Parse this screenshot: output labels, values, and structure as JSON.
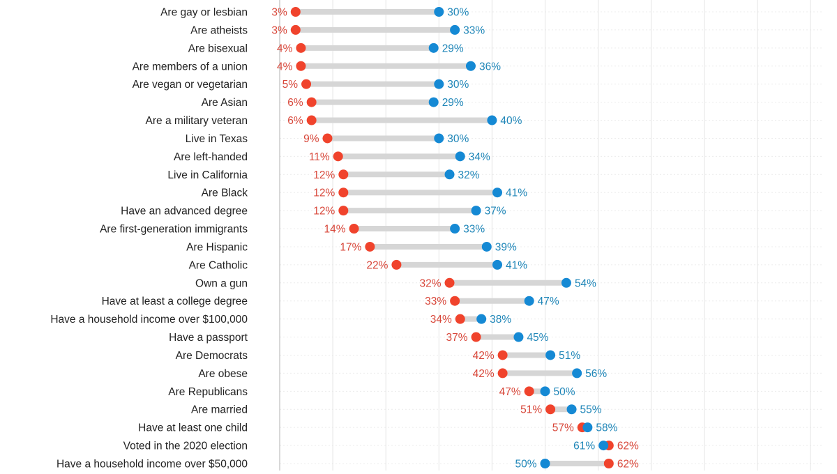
{
  "chart_data": {
    "type": "dumbbell",
    "xlim": [
      0,
      100
    ],
    "grid": true,
    "value_suffix": "%",
    "colors": {
      "red": "#f0432c",
      "blue": "#1589d4",
      "bar": "#d6d6d6",
      "red_text": "#d8473a",
      "blue_text": "#1f86b8",
      "label_text": "#222222"
    },
    "categories": [
      "Are gay or lesbian",
      "Are atheists",
      "Are bisexual",
      "Are members of a union",
      "Are vegan or vegetarian",
      "Are Asian",
      "Are a military veteran",
      "Live in Texas",
      "Are left-handed",
      "Live in California",
      "Are Black",
      "Have an advanced degree",
      "Are first-generation immigrants",
      "Are Hispanic",
      "Are Catholic",
      "Own a gun",
      "Have at least a college degree",
      "Have a household income over $100,000",
      "Have a passport",
      "Are Democrats",
      "Are obese",
      "Are Republicans",
      "Are married",
      "Have at least one child",
      "Voted in the 2020 election",
      "Have a household income over $50,000"
    ],
    "series": [
      {
        "color": "red",
        "values": [
          3,
          3,
          4,
          4,
          5,
          6,
          6,
          9,
          11,
          12,
          12,
          12,
          14,
          17,
          22,
          32,
          33,
          34,
          37,
          42,
          42,
          47,
          51,
          57,
          62,
          62
        ]
      },
      {
        "color": "blue",
        "values": [
          30,
          33,
          29,
          36,
          30,
          29,
          40,
          30,
          34,
          32,
          41,
          37,
          33,
          39,
          41,
          54,
          47,
          38,
          45,
          51,
          56,
          50,
          55,
          58,
          61,
          50
        ]
      }
    ]
  }
}
